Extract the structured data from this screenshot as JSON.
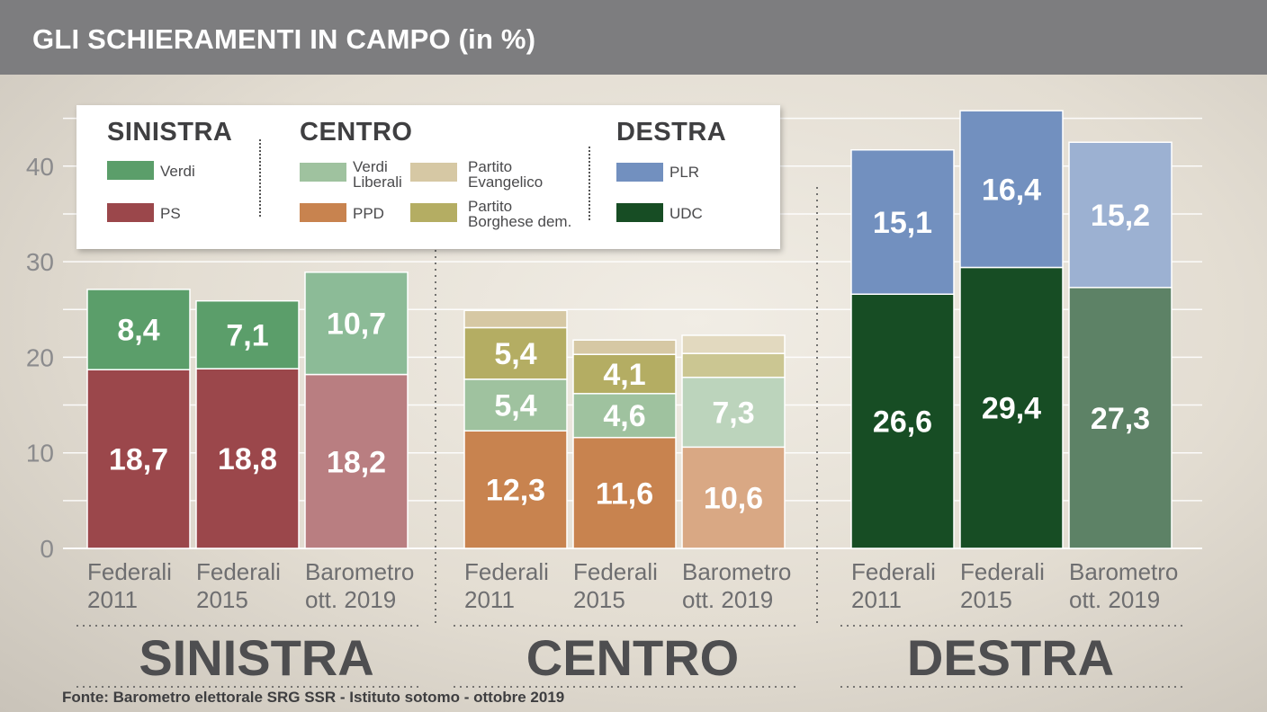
{
  "title": "GLI SCHIERAMENTI IN CAMPO (in %)",
  "source": "Fonte: Barometro elettorale SRG SSR - Istituto sotomo - ottobre 2019",
  "legend": {
    "sinistra": {
      "heading": "SINISTRA",
      "verdi": "Verdi",
      "ps": "PS"
    },
    "centro": {
      "heading": "CENTRO",
      "verdi_liberali": "Verdi\nLiberali",
      "ppd": "PPD",
      "evangelico": "Partito\nEvangelico",
      "borghese": "Partito\nBorghese dem."
    },
    "destra": {
      "heading": "DESTRA",
      "plr": "PLR",
      "udc": "UDC"
    }
  },
  "colors": {
    "verdi": "#5b9e6a",
    "ps": "#9b474b",
    "verdi_liberali": "#9fc29f",
    "ppd": "#c8834f",
    "evangelico": "#d6c8a4",
    "borghese": "#b4ad63",
    "plr": "#7290bf",
    "udc": "#174d24"
  },
  "chart_data": {
    "type": "bar",
    "stacked": true,
    "ylim": [
      0,
      45
    ],
    "yticks": [
      0,
      10,
      20,
      30,
      40
    ],
    "categories": [
      "Federali\n2011",
      "Federali\n2015",
      "Barometro\nott. 2019"
    ],
    "groups": [
      {
        "name": "SINISTRA",
        "series": [
          {
            "name": "PS",
            "key": "ps",
            "values": [
              18.7,
              18.8,
              18.2
            ],
            "labels": [
              "18,7",
              "18,8",
              "18,2"
            ]
          },
          {
            "name": "Verdi",
            "key": "verdi",
            "values": [
              8.4,
              7.1,
              10.7
            ],
            "labels": [
              "8,4",
              "7,1",
              "10,7"
            ]
          }
        ]
      },
      {
        "name": "CENTRO",
        "series": [
          {
            "name": "PPD",
            "key": "ppd",
            "values": [
              12.3,
              11.6,
              10.6
            ],
            "labels": [
              "12,3",
              "11,6",
              "10,6"
            ]
          },
          {
            "name": "Verdi Liberali",
            "key": "verdi_liberali",
            "values": [
              5.4,
              4.6,
              7.3
            ],
            "labels": [
              "5,4",
              "4,6",
              "7,3"
            ]
          },
          {
            "name": "Partito Borghese dem.",
            "key": "borghese",
            "values": [
              5.4,
              4.1,
              2.5
            ],
            "labels": [
              "5,4",
              "4,1",
              ""
            ]
          },
          {
            "name": "Partito Evangelico",
            "key": "evangelico",
            "values": [
              1.8,
              1.5,
              1.9
            ],
            "labels": [
              "",
              "",
              ""
            ]
          }
        ]
      },
      {
        "name": "DESTRA",
        "series": [
          {
            "name": "UDC",
            "key": "udc",
            "values": [
              26.6,
              29.4,
              27.3
            ],
            "labels": [
              "26,6",
              "29,4",
              "27,3"
            ]
          },
          {
            "name": "PLR",
            "key": "plr",
            "values": [
              15.1,
              16.4,
              15.2
            ],
            "labels": [
              "15,1",
              "16,4",
              "15,2"
            ]
          }
        ]
      }
    ],
    "note": "Third column of each group (Barometro ott. 2019) is drawn in faded colors"
  }
}
